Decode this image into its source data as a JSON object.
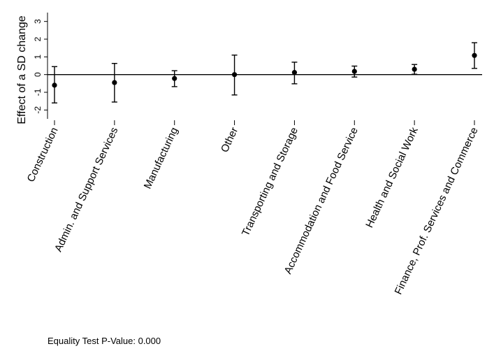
{
  "chart_data": {
    "type": "scatter",
    "ylabel": "Effect of a SD change",
    "ylim": [
      -2.5,
      3.5
    ],
    "yticks": [
      -2,
      -1,
      0,
      1,
      2,
      3
    ],
    "reference_line": 0,
    "categories": [
      "Construction",
      "Admin. and Support Services",
      "Manufacturing",
      "Other",
      "Transporting and Storage",
      "Accommodation and Food Service",
      "Health and Social Work",
      "Finance, Prof. Services and Commerce"
    ],
    "series": [
      {
        "values": [
          -0.6,
          -0.45,
          -0.22,
          0.0,
          0.12,
          0.18,
          0.3,
          1.08
        ],
        "lower": [
          -1.6,
          -1.55,
          -0.68,
          -1.15,
          -0.52,
          -0.14,
          0.02,
          0.35
        ],
        "upper": [
          0.45,
          0.63,
          0.22,
          1.1,
          0.7,
          0.48,
          0.57,
          1.8
        ]
      }
    ],
    "grid": false,
    "legend": "none",
    "colors": {
      "marker": "#000000",
      "line": "#000000"
    }
  },
  "footnote": "Equality Test P-Value: 0.000"
}
